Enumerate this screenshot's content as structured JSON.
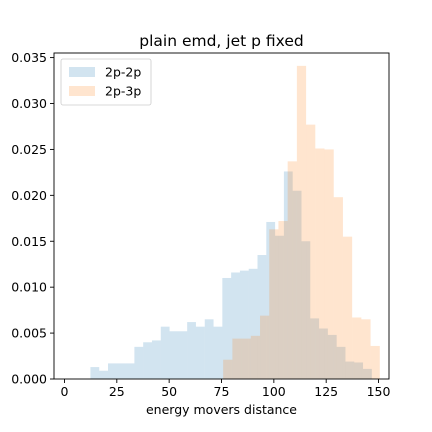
{
  "chart_data": {
    "type": "bar",
    "title": "plain emd, jet p fixed",
    "xlabel": "energy movers distance",
    "ylabel": "",
    "xlim": [
      -5,
      155
    ],
    "ylim": [
      0,
      0.0355
    ],
    "xticks": [
      0,
      25,
      50,
      75,
      100,
      125,
      150
    ],
    "yticks": [
      0.0,
      0.005,
      0.01,
      0.015,
      0.02,
      0.025,
      0.03,
      0.035
    ],
    "ytick_labels": [
      "0.000",
      "0.005",
      "0.010",
      "0.015",
      "0.020",
      "0.025",
      "0.030",
      "0.035"
    ],
    "legend_position": "top-left",
    "grid": false,
    "series": [
      {
        "name": "2p-2p",
        "color": "#1f77b4",
        "alpha": 0.2,
        "bins": [
          {
            "x0": 12.4,
            "x1": 16.6,
            "y": 0.0013
          },
          {
            "x0": 16.6,
            "x1": 20.8,
            "y": 0.0009
          },
          {
            "x0": 20.8,
            "x1": 25.0,
            "y": 0.0017
          },
          {
            "x0": 25.0,
            "x1": 29.2,
            "y": 0.0017
          },
          {
            "x0": 29.2,
            "x1": 33.4,
            "y": 0.0017
          },
          {
            "x0": 33.4,
            "x1": 37.6,
            "y": 0.0035
          },
          {
            "x0": 37.6,
            "x1": 41.8,
            "y": 0.004
          },
          {
            "x0": 41.8,
            "x1": 46.0,
            "y": 0.0042
          },
          {
            "x0": 46.0,
            "x1": 50.2,
            "y": 0.0057
          },
          {
            "x0": 50.2,
            "x1": 54.4,
            "y": 0.0052
          },
          {
            "x0": 54.4,
            "x1": 58.6,
            "y": 0.0052
          },
          {
            "x0": 58.6,
            "x1": 62.8,
            "y": 0.0062
          },
          {
            "x0": 62.8,
            "x1": 67.0,
            "y": 0.0057
          },
          {
            "x0": 67.0,
            "x1": 71.2,
            "y": 0.0065
          },
          {
            "x0": 71.2,
            "x1": 75.4,
            "y": 0.0057
          },
          {
            "x0": 75.4,
            "x1": 79.6,
            "y": 0.011
          },
          {
            "x0": 79.6,
            "x1": 83.8,
            "y": 0.0116
          },
          {
            "x0": 83.8,
            "x1": 88.0,
            "y": 0.0118
          },
          {
            "x0": 88.0,
            "x1": 92.2,
            "y": 0.012
          },
          {
            "x0": 92.2,
            "x1": 96.4,
            "y": 0.0135
          },
          {
            "x0": 96.4,
            "x1": 100.6,
            "y": 0.0171
          },
          {
            "x0": 100.6,
            "x1": 104.8,
            "y": 0.0156
          },
          {
            "x0": 104.8,
            "x1": 109.0,
            "y": 0.0226
          },
          {
            "x0": 109.0,
            "x1": 113.2,
            "y": 0.0205
          },
          {
            "x0": 113.2,
            "x1": 117.4,
            "y": 0.015
          },
          {
            "x0": 117.4,
            "x1": 121.6,
            "y": 0.0066
          },
          {
            "x0": 121.6,
            "x1": 125.8,
            "y": 0.0055
          },
          {
            "x0": 125.8,
            "x1": 130.0,
            "y": 0.0048
          },
          {
            "x0": 130.0,
            "x1": 134.2,
            "y": 0.0035
          },
          {
            "x0": 134.2,
            "x1": 138.4,
            "y": 0.0019
          },
          {
            "x0": 138.4,
            "x1": 142.6,
            "y": 0.0018
          },
          {
            "x0": 142.6,
            "x1": 146.8,
            "y": 0.0011
          }
        ]
      },
      {
        "name": "2p-3p",
        "color": "#ff7f0e",
        "alpha": 0.2,
        "bins": [
          {
            "x0": 75.8,
            "x1": 80.2,
            "y": 0.0021
          },
          {
            "x0": 80.2,
            "x1": 84.6,
            "y": 0.0044
          },
          {
            "x0": 84.6,
            "x1": 89.0,
            "y": 0.0044
          },
          {
            "x0": 89.0,
            "x1": 93.4,
            "y": 0.0047
          },
          {
            "x0": 93.4,
            "x1": 97.8,
            "y": 0.0069
          },
          {
            "x0": 97.8,
            "x1": 102.2,
            "y": 0.0163
          },
          {
            "x0": 102.2,
            "x1": 106.6,
            "y": 0.0172
          },
          {
            "x0": 106.6,
            "x1": 111.0,
            "y": 0.0237
          },
          {
            "x0": 111.0,
            "x1": 115.4,
            "y": 0.0341
          },
          {
            "x0": 115.4,
            "x1": 119.8,
            "y": 0.0277
          },
          {
            "x0": 119.8,
            "x1": 124.2,
            "y": 0.0251
          },
          {
            "x0": 124.2,
            "x1": 128.6,
            "y": 0.025
          },
          {
            "x0": 128.6,
            "x1": 133.0,
            "y": 0.0198
          },
          {
            "x0": 133.0,
            "x1": 137.4,
            "y": 0.0155
          },
          {
            "x0": 137.4,
            "x1": 141.8,
            "y": 0.0067
          },
          {
            "x0": 141.8,
            "x1": 146.2,
            "y": 0.0065
          },
          {
            "x0": 146.2,
            "x1": 150.6,
            "y": 0.0036
          }
        ]
      }
    ]
  }
}
